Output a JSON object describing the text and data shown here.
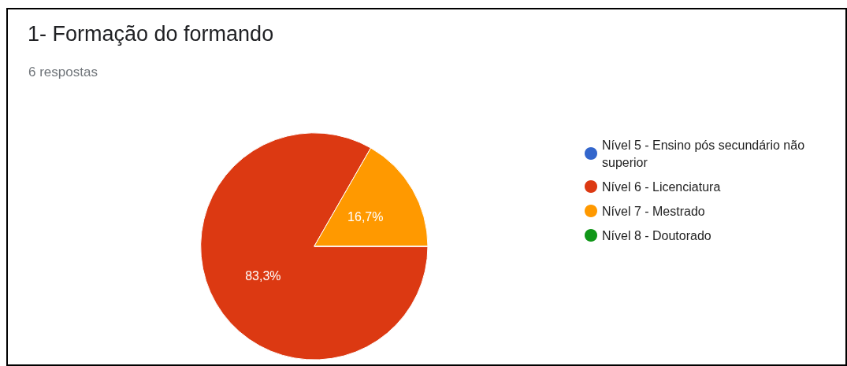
{
  "chart_data": {
    "type": "pie",
    "title": "1- Formação do formando",
    "subtitle": "6 respostas",
    "categories": [
      "Nível 5 - Ensino pós secundário não superior",
      "Nível 6 - Licenciatura",
      "Nível 7 - Mestrado",
      "Nível 8 - Doutorado"
    ],
    "values": [
      0,
      83.3,
      16.7,
      0
    ],
    "colors": [
      "#3366cc",
      "#dc3912",
      "#ff9900",
      "#109618"
    ],
    "value_labels": [
      null,
      "83,3%",
      "16,7%",
      null
    ],
    "legend": "right"
  }
}
